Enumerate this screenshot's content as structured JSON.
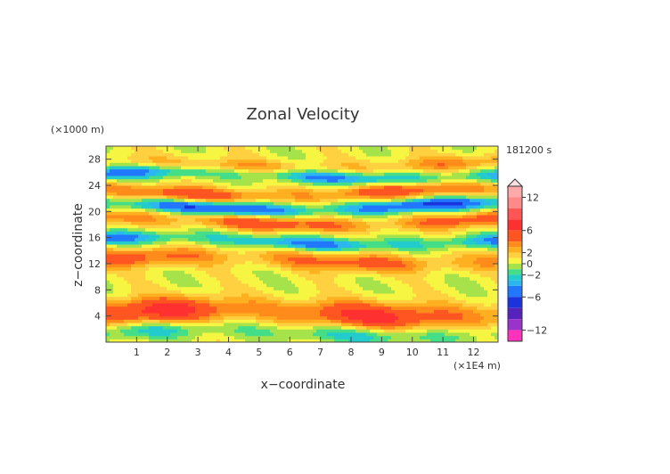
{
  "chart_data": {
    "type": "heatmap",
    "title": "Zonal Velocity",
    "xlabel": "x−coordinate",
    "ylabel": "z−coordinate",
    "x_unit": "(×1E4 m)",
    "y_unit": "(×1000 m)",
    "time_label": "181200 s",
    "xlim": [
      0,
      12.8
    ],
    "ylim": [
      0,
      30
    ],
    "x_ticks": [
      "1",
      "2",
      "3",
      "4",
      "5",
      "6",
      "7",
      "8",
      "9",
      "10",
      "11",
      "12"
    ],
    "y_ticks": [
      "4",
      "8",
      "12",
      "16",
      "20",
      "24",
      "28"
    ],
    "colorbar": {
      "labels": [
        "12",
        "6",
        "2",
        "0",
        "−2",
        "−6",
        "−12"
      ],
      "range": [
        -14,
        14
      ],
      "colors": [
        {
          "from": 12,
          "to": 14,
          "color": "#ffaaaa"
        },
        {
          "from": 10,
          "to": 12,
          "color": "#ff8888"
        },
        {
          "from": 8,
          "to": 10,
          "color": "#ff5555"
        },
        {
          "from": 6,
          "to": 8,
          "color": "#ff3030"
        },
        {
          "from": 4,
          "to": 6,
          "color": "#ff5520"
        },
        {
          "from": 3,
          "to": 4,
          "color": "#ff8c1a"
        },
        {
          "from": 2,
          "to": 3,
          "color": "#ffb020"
        },
        {
          "from": 1,
          "to": 2,
          "color": "#ffd040"
        },
        {
          "from": 0,
          "to": 1,
          "color": "#f5f542"
        },
        {
          "from": -1,
          "to": 0,
          "color": "#a6e34a"
        },
        {
          "from": -2,
          "to": -1,
          "color": "#44dd88"
        },
        {
          "from": -3,
          "to": -2,
          "color": "#22cccc"
        },
        {
          "from": -4,
          "to": -3,
          "color": "#2bb6f0"
        },
        {
          "from": -6,
          "to": -4,
          "color": "#2277ff"
        },
        {
          "from": -8,
          "to": -6,
          "color": "#1a33dd"
        },
        {
          "from": -10,
          "to": -8,
          "color": "#5522bb"
        },
        {
          "from": -12,
          "to": -10,
          "color": "#9933cc"
        },
        {
          "from": -14,
          "to": -12,
          "color": "#ff33bb"
        }
      ]
    }
  }
}
